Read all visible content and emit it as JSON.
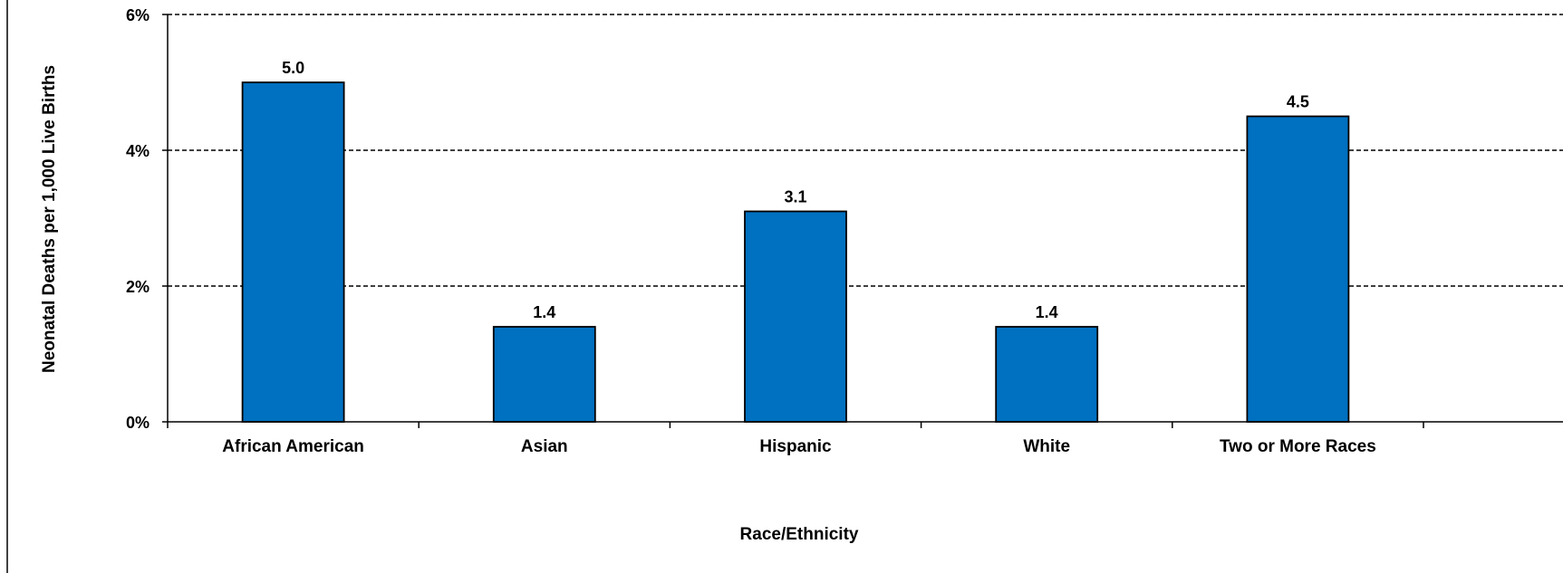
{
  "chart_data": {
    "type": "bar",
    "title": "",
    "xlabel": "Race/Ethnicity",
    "ylabel": "Neonatal Deaths per 1,000 Live Births",
    "categories": [
      "African American",
      "Asian",
      "Hispanic",
      "White",
      "Two or More Races"
    ],
    "series": [
      {
        "values": [
          5.0,
          1.4,
          3.1,
          1.4,
          4.5
        ],
        "data_labels": [
          "5.0",
          "1.4",
          "3.1",
          "1.4",
          "4.5"
        ]
      }
    ],
    "ylim": [
      0,
      6
    ],
    "y_ticks": [
      0,
      2,
      4,
      6
    ],
    "y_tick_labels": [
      "0%",
      "2%",
      "4%",
      "6%"
    ],
    "grid": "horizontal dashed",
    "legend": "none",
    "bar_color": "#0070C0",
    "bar_edge_color": "#000000"
  }
}
